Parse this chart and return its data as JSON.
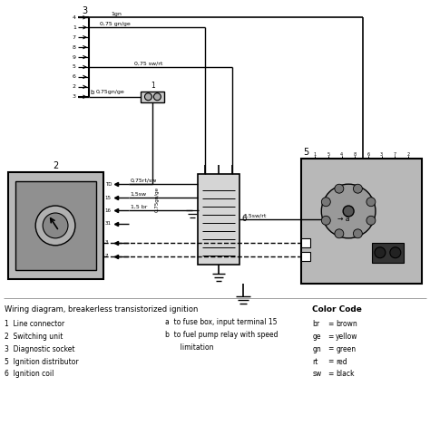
{
  "bg_color": "#ffffff",
  "gray_box": "#b8b8b8",
  "dark_gray": "#888888",
  "title": "Wiring diagram, breakerless transistorized ignition",
  "component_labels": [
    "1  Line connector",
    "2  Switching unit",
    "3  Diagnostic socket",
    "5  Ignition distributor",
    "6  Ignition coil"
  ],
  "notes_a": "a  to fuse box, input terminal 15",
  "notes_b1": "b  to fuel pump relay with speed",
  "notes_b2": "       limitation",
  "color_code_title": "Color Code",
  "color_codes": [
    [
      "br",
      "brown"
    ],
    [
      "ge",
      "yellow"
    ],
    [
      "gn",
      "green"
    ],
    [
      "rt",
      "red"
    ],
    [
      "sw",
      "black"
    ]
  ],
  "connector_pins": [
    "4",
    "1",
    "7",
    "8",
    "9",
    "5",
    "6",
    "2",
    "3"
  ],
  "ecu_pins": [
    "TD",
    "15",
    "16",
    "31",
    "3",
    "7"
  ],
  "dist_pins": [
    "1",
    "5",
    "4",
    "8",
    "6",
    "3",
    "7",
    "2"
  ],
  "wire_top1": "1gn",
  "wire_top2": "0,75 gn/ge",
  "wire_mid1": "0,75 sw/rt",
  "wire_b": "0,75gn/ge",
  "wire_vert": "0,75gn/ge",
  "wire_right": "1,5sw/rt",
  "wire_td": "0,75rt/sw",
  "wire_15": "1,5sw",
  "wire_16": "1,5 br",
  "label_a": "a",
  "label_b": "b",
  "label_1": "1",
  "label_2": "2",
  "label_3": "3",
  "label_5": "5",
  "label_6": "6"
}
